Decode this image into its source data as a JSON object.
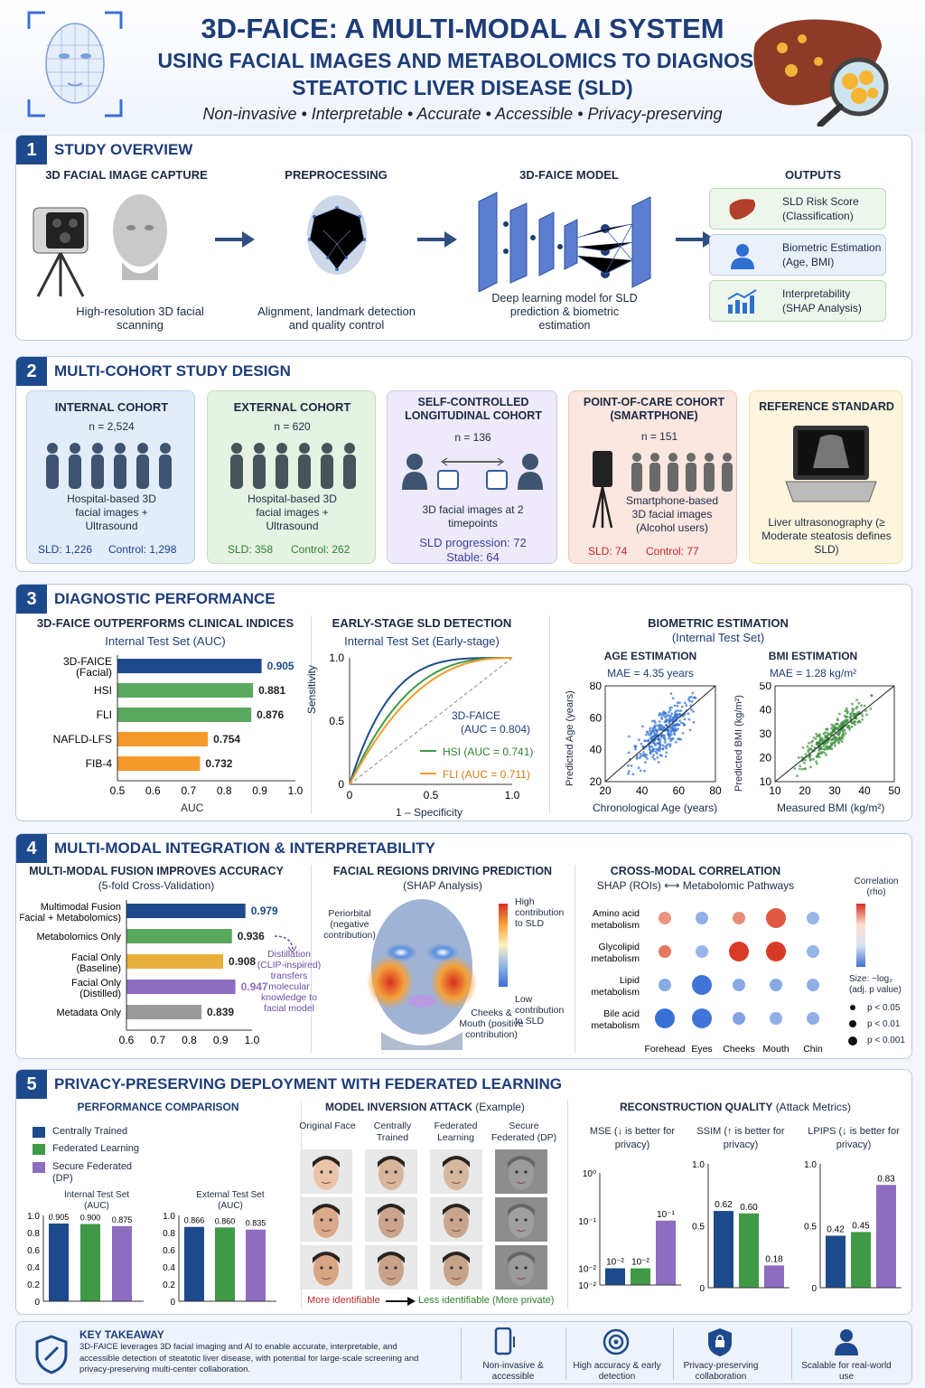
{
  "header": {
    "title1": "3D-FAICE: A MULTI-MODAL AI SYSTEM",
    "title2": "USING FACIAL IMAGES AND METABOLOMICS TO DIAGNOSE",
    "title3": "STEATOTIC LIVER DISEASE (SLD)",
    "tagline": "Non-invasive • Interpretable • Accurate • Accessible • Privacy-preserving"
  },
  "s1": {
    "num": "1",
    "title": "STUDY OVERVIEW",
    "step1": {
      "title": "3D FACIAL IMAGE CAPTURE",
      "caption": "High-resolution 3D facial scanning"
    },
    "step2": {
      "title": "PREPROCESSING",
      "caption": "Alignment, landmark detection and quality control"
    },
    "step3": {
      "title": "3D-FAICE MODEL",
      "caption": "Deep learning model for SLD prediction & biometric estimation"
    },
    "outputs": {
      "title": "OUTPUTS",
      "o1": "SLD Risk Score (Classification)",
      "o2": "Biometric Estimation (Age, BMI)",
      "o3": "Interpretability (SHAP Analysis)"
    }
  },
  "s2": {
    "num": "2",
    "title": "MULTI-COHORT STUDY DESIGN",
    "c1": {
      "title": "INTERNAL COHORT",
      "n": "n = 2,524",
      "desc": "Hospital-based 3D facial images + Ultrasound",
      "a": "SLD: 1,226",
      "b": "Control: 1,298"
    },
    "c2": {
      "title": "EXTERNAL COHORT",
      "n": "n = 620",
      "desc": "Hospital-based 3D facial images + Ultrasound",
      "a": "SLD: 358",
      "b": "Control: 262"
    },
    "c3": {
      "title": "SELF-CONTROLLED LONGITUDINAL COHORT",
      "n": "n = 136",
      "desc": "3D facial images at 2 timepoints",
      "a": "SLD progression: 72",
      "b": "Stable: 64"
    },
    "c4": {
      "title": "POINT-OF-CARE COHORT (SMARTPHONE)",
      "n": "n = 151",
      "desc": "Smartphone-based 3D facial images (Alcohol users)",
      "a": "SLD: 74",
      "b": "Control: 77"
    },
    "c5": {
      "title": "REFERENCE STANDARD",
      "desc": "Liver ultrasonography (≥ Moderate steatosis defines SLD)"
    }
  },
  "s3": {
    "num": "3",
    "title": "DIAGNOSTIC PERFORMANCE",
    "bar": {
      "title": "3D-FAICE OUTPERFORMS CLINICAL INDICES",
      "subtitle": "Internal Test Set (AUC)",
      "xlabel": "AUC"
    },
    "roc": {
      "title": "EARLY-STAGE SLD DETECTION",
      "subtitle": "Internal Test Set (Early-stage)",
      "ylabel": "Sensitivity",
      "xlabel": "1 – Specificity",
      "l1": "3D-FAICE",
      "l1b": "(AUC = 0.804)",
      "l2": "HSI (AUC = 0.741)",
      "l3": "FLI (AUC = 0.711)"
    },
    "bio": {
      "title": "BIOMETRIC ESTIMATION",
      "subtitle": "(Internal Test  Set)",
      "age_title": "AGE ESTIMATION",
      "age_mae": "MAE = 4.35 years",
      "age_y": "Predicted Age (years)",
      "age_x": "Chronological Age (years)",
      "bmi_title": "BMI ESTIMATION",
      "bmi_mae": "MAE = 1.28 kg/m²",
      "bmi_y": "Predicted BMI (kg/m²)",
      "bmi_x": "Measured BMI (kg/m²)"
    }
  },
  "s4": {
    "num": "4",
    "title": "MULTI-MODAL INTEGRATION & INTERPRETABILITY",
    "fusion": {
      "title": "MULTI-MODAL FUSION IMPROVES ACCURACY",
      "subtitle": "(5-fold Cross-Validation)",
      "note": "Distillation (CLIP-inspired) transfers molecular knowledge to facial model"
    },
    "shap": {
      "title": "FACIAL REGIONS DRIVING PREDICTION",
      "subtitle": "(SHAP Analysis)",
      "peri": "Periorbital (negative contribution)",
      "cheek": "Cheeks & Mouth (positive contribution)",
      "high": "High contribution to SLD",
      "low": "Low contribution to SLD"
    },
    "corr": {
      "title": "CROSS-MODAL CORRELATION",
      "subtitle": "SHAP (ROIs) ⟷ Metabolomic Pathways",
      "cb_title": "Correlation (rho)",
      "size_title": "Size: −log₂ (adj. p value)",
      "p1": "p < 0.05",
      "p2": "p < 0.01",
      "p3": "p < 0.001"
    }
  },
  "s5": {
    "num": "5",
    "title": "PRIVACY-PRESERVING DEPLOYMENT WITH FEDERATED LEARNING",
    "perf": {
      "title": "PERFORMANCE COMPARISON",
      "leg1": "Centrally Trained",
      "leg2": "Federated Learning",
      "leg3": "Secure Federated (DP)",
      "int": "Internal Test Set (AUC)",
      "ext": "External Test Set (AUC)"
    },
    "attack": {
      "title": "MODEL INVERSION ATTACK",
      "title_b": "(Example)",
      "c1": "Original Face",
      "c2": "Centrally Trained",
      "c3": "Federated Learning",
      "c4": "Secure Federated (DP)",
      "more": "More identifiable",
      "less": "Less identifiable (More private)"
    },
    "recon": {
      "title": "RECONSTRUCTION QUALITY",
      "title_b": "(Attack Metrics)",
      "mse": "MSE (↓ is better for privacy)",
      "ssim": "SSIM (↑ is better for privacy)",
      "lpips": "LPIPS (↓ is better for privacy)"
    }
  },
  "footer": {
    "title": "KEY TAKEAWAY",
    "text": "3D-FAICE leverages 3D facial imaging and AI to enable accurate, interpretable, and accessible detection of steatotic liver disease, with potential for large-scale screening and privacy-preserving multi-center collaboration.",
    "f1": "Non-invasive & accessible",
    "f2": "High accuracy & early detection",
    "f3": "Privacy-preserving collaboration",
    "f4": "Scalable for real-world use"
  },
  "colors": {
    "navy": "#1d4a8c",
    "green": "#4a9a4f",
    "orange": "#f39a2b",
    "purple": "#8e6cc0",
    "gray": "#9a9a9a"
  },
  "chart_data": [
    {
      "id": "auc_bar",
      "type": "bar",
      "title": "3D-FAICE OUTPERFORMS CLINICAL INDICES",
      "subtitle": "Internal Test Set (AUC)",
      "xlabel": "AUC",
      "categories": [
        "3D-FAICE (Facial)",
        "HSI",
        "FLI",
        "NAFLD-LFS",
        "FIB-4"
      ],
      "values": [
        0.905,
        0.881,
        0.876,
        0.754,
        0.732
      ],
      "labels": [
        "0.905",
        "0.881",
        "0.876",
        "0.754",
        "0.732"
      ],
      "colors": [
        "#1d4a8c",
        "#5aa85e",
        "#5aa85e",
        "#f39a2b",
        "#f39a2b"
      ],
      "xlim": [
        0.5,
        1.0
      ],
      "ticks": [
        "0.5",
        "0.6",
        "0.7",
        "0.8",
        "0.9",
        "1.0"
      ]
    },
    {
      "id": "roc",
      "type": "line",
      "x_ticks": [
        "0",
        "0.5",
        "1.0"
      ],
      "y_ticks": [
        "0",
        "0.5",
        "1.0"
      ],
      "series": [
        {
          "name": "3D-FAICE",
          "auc": 0.804,
          "color": "#1d4a8c"
        },
        {
          "name": "HSI",
          "auc": 0.741,
          "color": "#3f9a46"
        },
        {
          "name": "FLI",
          "auc": 0.711,
          "color": "#f39a2b"
        }
      ]
    },
    {
      "id": "age",
      "type": "scatter",
      "x_ticks": [
        "20",
        "40",
        "60",
        "80"
      ],
      "y_ticks": [
        "20",
        "40",
        "60",
        "80"
      ],
      "xlim": [
        20,
        80
      ],
      "ylim": [
        20,
        80
      ],
      "color": "#2f6fd0",
      "mae": 4.35
    },
    {
      "id": "bmi",
      "type": "scatter",
      "x_ticks": [
        "10",
        "20",
        "30",
        "40",
        "50"
      ],
      "y_ticks": [
        "10",
        "20",
        "30",
        "40",
        "50"
      ],
      "xlim": [
        10,
        50
      ],
      "ylim": [
        10,
        50
      ],
      "color": "#3f8f3f",
      "mae": 1.28
    },
    {
      "id": "fusion",
      "type": "bar",
      "categories": [
        "Multimodal Fusion (Facial + Metabolomics)",
        "Metabolomics Only",
        "Facial Only (Baseline)",
        "Facial Only (Distilled)",
        "Metadata Only"
      ],
      "values": [
        0.979,
        0.936,
        0.908,
        0.947,
        0.839
      ],
      "labels": [
        "0.979",
        "0.936",
        "0.908",
        "0.947",
        "0.839"
      ],
      "colors": [
        "#1d4a8c",
        "#5aa85e",
        "#e8b03a",
        "#8e6cc0",
        "#9a9a9a"
      ],
      "xlim": [
        0.6,
        1.0
      ],
      "ticks": [
        "0.6",
        "0.7",
        "0.8",
        "0.9",
        "1.0"
      ]
    },
    {
      "id": "corr",
      "type": "heatmap",
      "rows": [
        "Amino acid metabolism",
        "Glycolipid metabolism",
        "Lipid metabolism",
        "Bile acid metabolism"
      ],
      "cols": [
        "Forehead",
        "Eyes",
        "Cheeks",
        "Mouth",
        "Chin"
      ],
      "values": [
        [
          0.35,
          -0.35,
          0.4,
          0.75,
          -0.3
        ],
        [
          0.55,
          -0.3,
          0.95,
          0.95,
          -0.3
        ],
        [
          -0.4,
          -0.85,
          -0.4,
          -0.4,
          -0.35
        ],
        [
          -0.9,
          -0.85,
          -0.45,
          -0.35,
          -0.35
        ]
      ],
      "sizes": [
        [
          2,
          2,
          2,
          3,
          2
        ],
        [
          2,
          2,
          3,
          3,
          2
        ],
        [
          2,
          3,
          2,
          2,
          2
        ],
        [
          3,
          3,
          2,
          2,
          2
        ]
      ],
      "cb_ticks": [
        "1.0",
        "0",
        "−1.0"
      ]
    },
    {
      "id": "fl_internal",
      "type": "bar",
      "title": "Internal Test Set (AUC)",
      "categories": [
        "Centrally Trained",
        "Federated Learning",
        "Secure Federated (DP)"
      ],
      "values": [
        0.905,
        0.9,
        0.875
      ],
      "labels": [
        "0.905",
        "0.900",
        "0.875"
      ],
      "ylim": [
        0,
        1.0
      ],
      "ticks": [
        "0",
        "0.2",
        "0.4",
        "0.6",
        "0.8",
        "1.0"
      ]
    },
    {
      "id": "fl_external",
      "type": "bar",
      "title": "External Test Set (AUC)",
      "categories": [
        "Centrally Trained",
        "Federated Learning",
        "Secure Federated (DP)"
      ],
      "values": [
        0.866,
        0.86,
        0.835
      ],
      "labels": [
        "0.866",
        "0.860",
        "0.835"
      ],
      "ylim": [
        0,
        1.0
      ],
      "ticks": [
        "0",
        "0.2",
        "0.4",
        "0.6",
        "0.8",
        "1.0"
      ]
    },
    {
      "id": "mse",
      "type": "bar",
      "title": "MSE (↓ is better for privacy)",
      "categories": [
        "Centrally Trained",
        "Federated Learning",
        "Secure Federated (DP)"
      ],
      "values": [
        0.01,
        0.01,
        0.1
      ],
      "labels": [
        "10⁻²",
        "10⁻²",
        "10⁻¹"
      ],
      "scale": "log",
      "ticks": [
        "10⁰",
        "10⁻¹",
        "10⁻²",
        "10⁻²"
      ]
    },
    {
      "id": "ssim",
      "type": "bar",
      "title": "SSIM (↑ is better for privacy)",
      "categories": [
        "Centrally Trained",
        "Federated Learning",
        "Secure Federated (DP)"
      ],
      "values": [
        0.62,
        0.6,
        0.18
      ],
      "labels": [
        "0.62",
        "0.60",
        "0.18"
      ],
      "ylim": [
        0,
        1.0
      ],
      "ticks": [
        "1.0",
        "0.5",
        "0"
      ]
    },
    {
      "id": "lpips",
      "type": "bar",
      "title": "LPIPS (↓ is better for privacy)",
      "categories": [
        "Centrally Trained",
        "Federated Learning",
        "Secure Federated (DP)"
      ],
      "values": [
        0.42,
        0.45,
        0.83
      ],
      "labels": [
        "0.42",
        "0.45",
        "0.83"
      ],
      "ylim": [
        0,
        1.0
      ],
      "ticks": [
        "1.0",
        "0.5",
        "0"
      ]
    }
  ]
}
